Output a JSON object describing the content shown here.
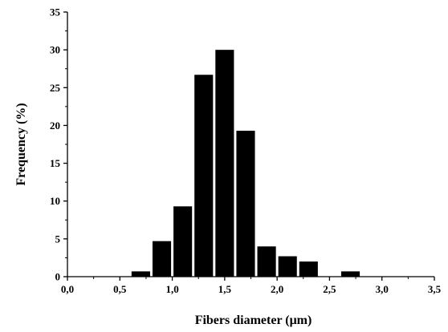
{
  "chart_data": {
    "type": "bar",
    "title": "",
    "xlabel": "Fibers diameter (μm)",
    "ylabel": "Frequency (%)",
    "xlim": [
      0.0,
      3.5
    ],
    "ylim": [
      0,
      35
    ],
    "x_ticks": [
      "0,0",
      "0,5",
      "1,0",
      "1,5",
      "2,0",
      "2,5",
      "3,0",
      "3,5"
    ],
    "y_ticks": [
      "0",
      "5",
      "10",
      "15",
      "20",
      "25",
      "30",
      "35"
    ],
    "bin_width": 0.2,
    "bar_color": "#000000",
    "grid": false,
    "legend": "none",
    "bins": [
      {
        "center": 0.7,
        "value": 0.7
      },
      {
        "center": 0.9,
        "value": 4.7
      },
      {
        "center": 1.1,
        "value": 9.3
      },
      {
        "center": 1.3,
        "value": 26.7
      },
      {
        "center": 1.5,
        "value": 30.0
      },
      {
        "center": 1.7,
        "value": 19.3
      },
      {
        "center": 1.9,
        "value": 4.0
      },
      {
        "center": 2.1,
        "value": 2.7
      },
      {
        "center": 2.3,
        "value": 2.0
      },
      {
        "center": 2.7,
        "value": 0.7
      }
    ]
  }
}
